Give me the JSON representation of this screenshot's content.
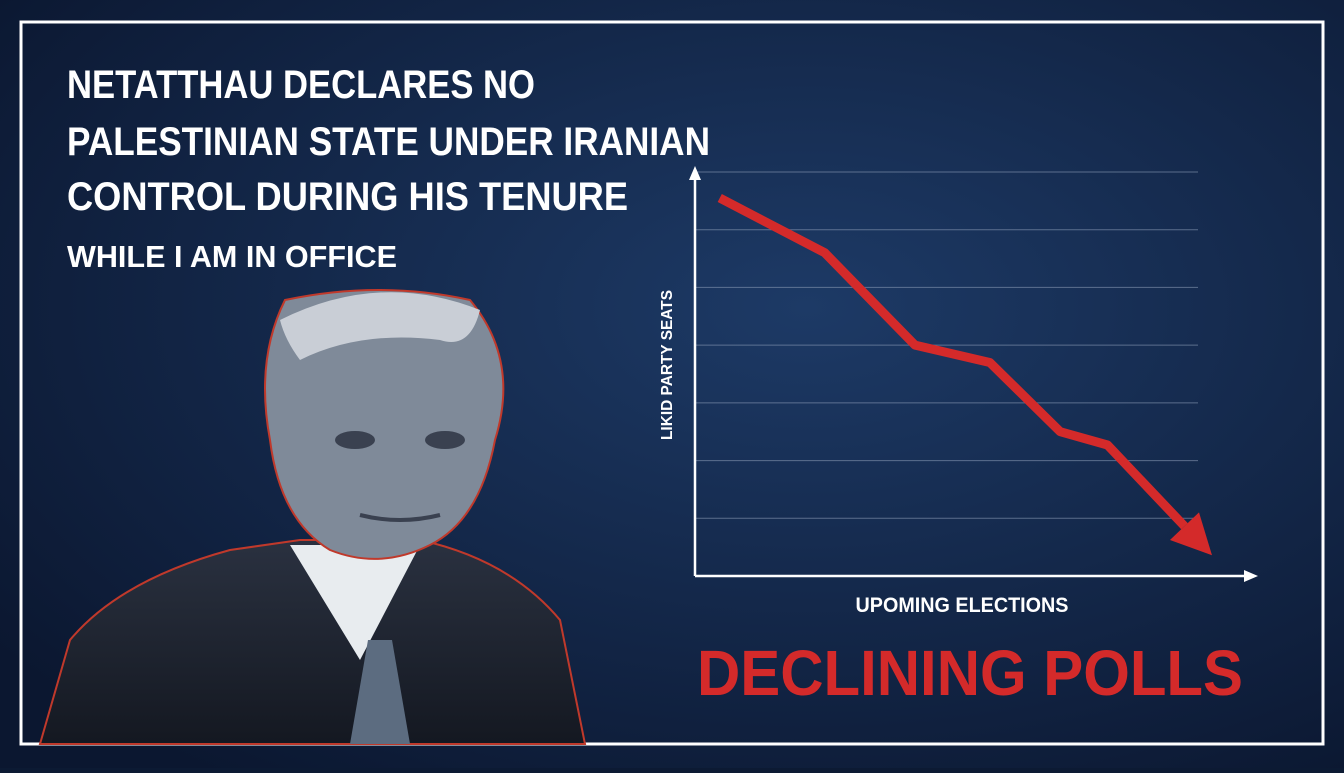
{
  "headline": {
    "lines": [
      "NETATTHAU DECLARES NO",
      "PALESTINIAN STATE UNDER IRANIAN",
      "CONTROL DURING HIS TENURE"
    ],
    "subline": "WHILE I AM IN OFFICE"
  },
  "chart_data": {
    "type": "line",
    "y_label": "LIKID PARTY SEATS",
    "x_label": "UPOMING ELECTIONS",
    "x": [
      0.45,
      2.36,
      4.0,
      5.36,
      6.64,
      7.5,
      9.4
    ],
    "values": [
      6.55,
      5.6,
      4.0,
      3.7,
      2.5,
      2.27,
      0.36
    ],
    "color": "#d42a2a",
    "xlim": [
      0,
      10
    ],
    "ylim": [
      0,
      7
    ],
    "yticks": [
      1,
      2,
      3,
      4,
      5,
      6,
      7
    ],
    "grid": true
  },
  "caption": "DECLINING POLLS"
}
